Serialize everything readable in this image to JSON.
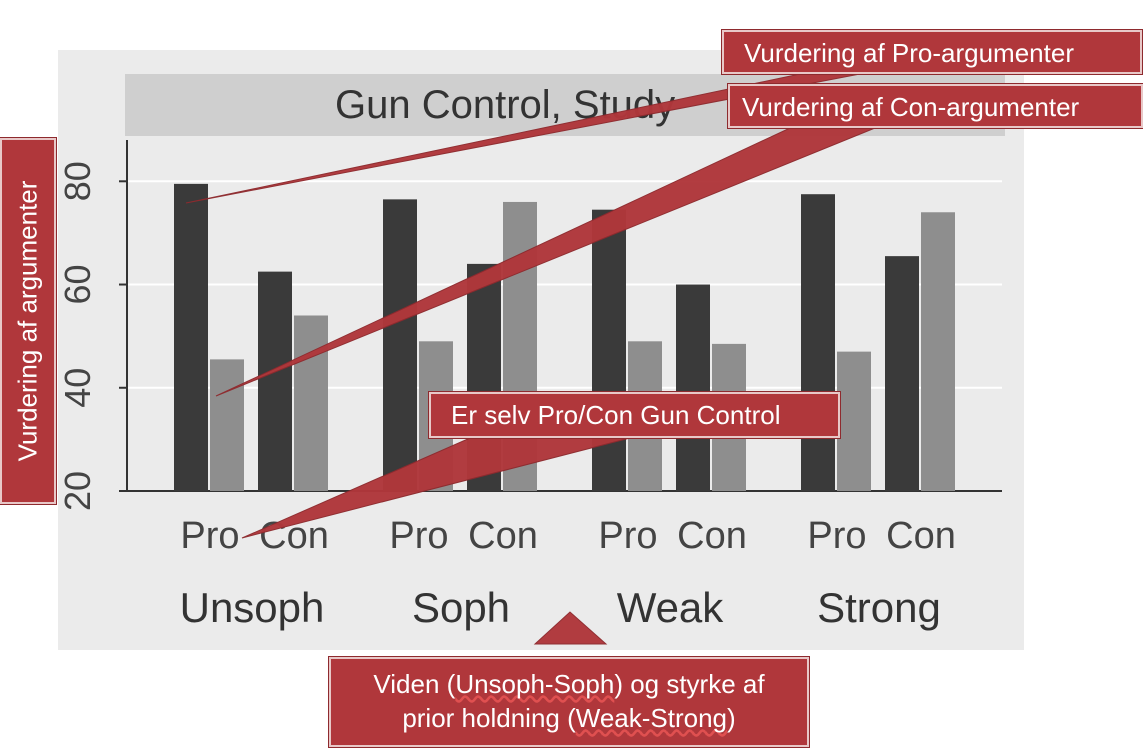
{
  "chart_data": {
    "type": "bar",
    "title": "Gun Control, Study",
    "group_labels": [
      "Unsoph",
      "Soph",
      "Weak",
      "Strong"
    ],
    "sub_labels": [
      "Pro",
      "Con"
    ],
    "categories": [
      "Unsoph Pro",
      "Unsoph Con",
      "Soph Pro",
      "Soph Con",
      "Weak Pro",
      "Weak Con",
      "Strong Pro",
      "Strong Con"
    ],
    "series": [
      {
        "values": [
          79.5,
          62.5,
          76.5,
          64,
          74.5,
          60,
          77.5,
          65.5
        ],
        "color": "#3a3a3a"
      },
      {
        "values": [
          45.5,
          54,
          49,
          76,
          49,
          48.5,
          47,
          74
        ],
        "color": "#8e8e8e"
      }
    ],
    "ytick_labels": [
      "20",
      "40",
      "60",
      "80"
    ],
    "yticks": [
      20,
      40,
      60,
      80
    ],
    "ylim": [
      20,
      88
    ],
    "grid": true,
    "xlabel": "",
    "ylabel": ""
  },
  "annotations": {
    "pro_ratings": "Vurdering af Pro-argumenter",
    "con_ratings": "Vurdering af Con-argumenter",
    "self_position": "Er selv Pro/Con Gun Control",
    "ylabel": "Vurdering af argumenter",
    "bottom_line1_a": "Viden (",
    "bottom_line1_u": "Unsoph-Soph",
    "bottom_line1_b": ") og styrke af",
    "bottom_line2_a": "prior holdning (",
    "bottom_line2_u": "Weak-Strong",
    "bottom_line2_b": ")"
  },
  "colors": {
    "annotation_fill": "#b0373b",
    "dark_bar": "#3a3a3a",
    "light_bar": "#8e8e8e",
    "title_strip": "#cfcfcf",
    "plot_background": "#ebebeb"
  }
}
